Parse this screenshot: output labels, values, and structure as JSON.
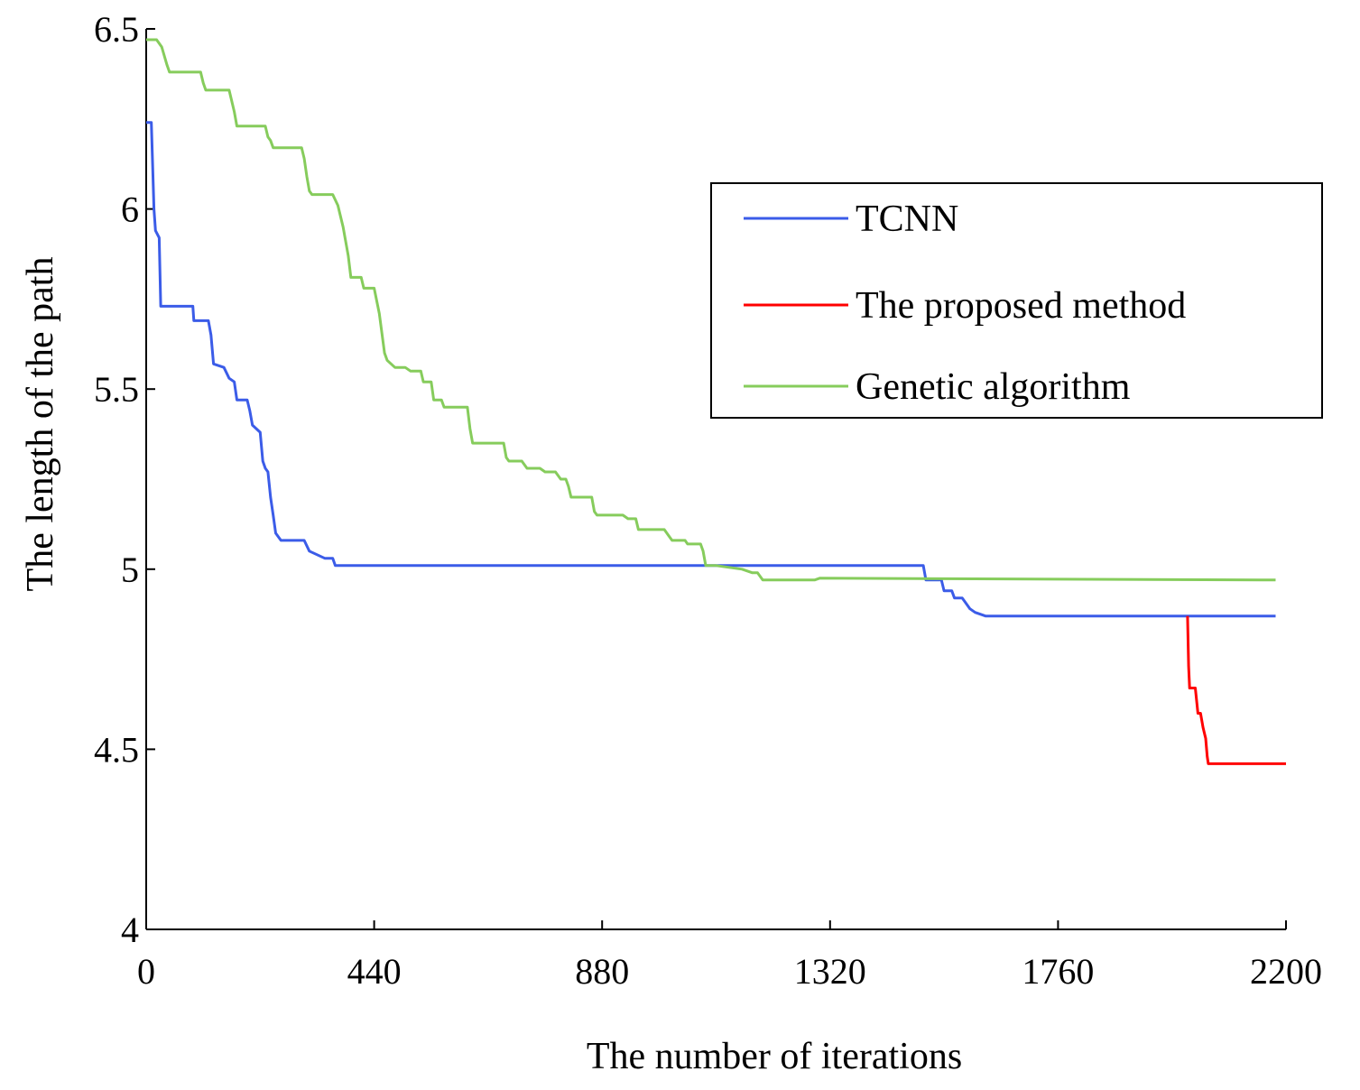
{
  "chart_data": {
    "type": "line",
    "title": "",
    "xlabel": "The number of iterations",
    "ylabel": "The length of the path",
    "xlim": [
      0,
      2200
    ],
    "ylim": [
      4,
      6.5
    ],
    "xticks": [
      "0",
      "440",
      "880",
      "1320",
      "1760",
      "2200"
    ],
    "yticks": [
      "4",
      "4.5",
      "5",
      "5.5",
      "6",
      "6.5"
    ],
    "legend": {
      "position": "top-right",
      "entries": [
        "TCNN",
        "The proposed method",
        "Genetic algorithm"
      ]
    },
    "series": [
      {
        "name": "TCNN",
        "color": "#3b5ce8",
        "points": [
          [
            0,
            6.24
          ],
          [
            10,
            6.24
          ],
          [
            15,
            6.0
          ],
          [
            18,
            5.94
          ],
          [
            25,
            5.92
          ],
          [
            28,
            5.73
          ],
          [
            90,
            5.73
          ],
          [
            92,
            5.69
          ],
          [
            120,
            5.69
          ],
          [
            125,
            5.65
          ],
          [
            130,
            5.57
          ],
          [
            150,
            5.56
          ],
          [
            160,
            5.53
          ],
          [
            170,
            5.52
          ],
          [
            175,
            5.47
          ],
          [
            195,
            5.47
          ],
          [
            200,
            5.44
          ],
          [
            205,
            5.4
          ],
          [
            220,
            5.38
          ],
          [
            225,
            5.3
          ],
          [
            230,
            5.28
          ],
          [
            235,
            5.27
          ],
          [
            240,
            5.2
          ],
          [
            245,
            5.15
          ],
          [
            250,
            5.1
          ],
          [
            260,
            5.08
          ],
          [
            305,
            5.08
          ],
          [
            315,
            5.05
          ],
          [
            345,
            5.03
          ],
          [
            360,
            5.03
          ],
          [
            365,
            5.01
          ],
          [
            1500,
            5.01
          ],
          [
            1505,
            4.97
          ],
          [
            1535,
            4.97
          ],
          [
            1540,
            4.94
          ],
          [
            1555,
            4.94
          ],
          [
            1560,
            4.92
          ],
          [
            1575,
            4.92
          ],
          [
            1580,
            4.91
          ],
          [
            1590,
            4.89
          ],
          [
            1600,
            4.88
          ],
          [
            1620,
            4.87
          ],
          [
            2180,
            4.87
          ]
        ]
      },
      {
        "name": "The proposed method",
        "color": "#ff0000",
        "points": [
          [
            2010,
            4.87
          ],
          [
            2012,
            4.73
          ],
          [
            2014,
            4.67
          ],
          [
            2025,
            4.67
          ],
          [
            2030,
            4.6
          ],
          [
            2035,
            4.6
          ],
          [
            2040,
            4.56
          ],
          [
            2045,
            4.53
          ],
          [
            2048,
            4.48
          ],
          [
            2050,
            4.46
          ],
          [
            2075,
            4.46
          ],
          [
            2200,
            4.46
          ]
        ]
      },
      {
        "name": "Genetic algorithm",
        "color": "#86cc5c",
        "points": [
          [
            0,
            6.47
          ],
          [
            20,
            6.47
          ],
          [
            30,
            6.45
          ],
          [
            40,
            6.4
          ],
          [
            45,
            6.38
          ],
          [
            100,
            6.38
          ],
          [
            105,
            6.38
          ],
          [
            110,
            6.35
          ],
          [
            115,
            6.33
          ],
          [
            160,
            6.33
          ],
          [
            170,
            6.27
          ],
          [
            175,
            6.23
          ],
          [
            230,
            6.23
          ],
          [
            235,
            6.2
          ],
          [
            240,
            6.19
          ],
          [
            245,
            6.17
          ],
          [
            300,
            6.17
          ],
          [
            305,
            6.14
          ],
          [
            310,
            6.09
          ],
          [
            315,
            6.05
          ],
          [
            320,
            6.04
          ],
          [
            360,
            6.04
          ],
          [
            370,
            6.01
          ],
          [
            380,
            5.95
          ],
          [
            390,
            5.87
          ],
          [
            395,
            5.81
          ],
          [
            415,
            5.81
          ],
          [
            420,
            5.78
          ],
          [
            440,
            5.78
          ],
          [
            450,
            5.71
          ],
          [
            460,
            5.6
          ],
          [
            465,
            5.58
          ],
          [
            480,
            5.56
          ],
          [
            500,
            5.56
          ],
          [
            510,
            5.55
          ],
          [
            530,
            5.55
          ],
          [
            535,
            5.52
          ],
          [
            550,
            5.52
          ],
          [
            555,
            5.47
          ],
          [
            570,
            5.47
          ],
          [
            575,
            5.45
          ],
          [
            620,
            5.45
          ],
          [
            625,
            5.39
          ],
          [
            630,
            5.35
          ],
          [
            660,
            5.35
          ],
          [
            690,
            5.35
          ],
          [
            695,
            5.31
          ],
          [
            700,
            5.3
          ],
          [
            725,
            5.3
          ],
          [
            735,
            5.28
          ],
          [
            760,
            5.28
          ],
          [
            770,
            5.27
          ],
          [
            790,
            5.27
          ],
          [
            800,
            5.25
          ],
          [
            810,
            5.25
          ],
          [
            815,
            5.23
          ],
          [
            820,
            5.2
          ],
          [
            860,
            5.2
          ],
          [
            865,
            5.16
          ],
          [
            870,
            5.15
          ],
          [
            920,
            5.15
          ],
          [
            930,
            5.14
          ],
          [
            945,
            5.14
          ],
          [
            950,
            5.11
          ],
          [
            1000,
            5.11
          ],
          [
            1010,
            5.09
          ],
          [
            1015,
            5.08
          ],
          [
            1040,
            5.08
          ],
          [
            1045,
            5.07
          ],
          [
            1070,
            5.07
          ],
          [
            1075,
            5.05
          ],
          [
            1080,
            5.01
          ],
          [
            1100,
            5.01
          ],
          [
            1150,
            5.0
          ],
          [
            1170,
            4.99
          ],
          [
            1180,
            4.99
          ],
          [
            1190,
            4.97
          ],
          [
            1200,
            4.97
          ],
          [
            1210,
            4.97
          ],
          [
            1290,
            4.97
          ],
          [
            1300,
            4.975
          ],
          [
            2180,
            4.97
          ]
        ]
      }
    ]
  }
}
